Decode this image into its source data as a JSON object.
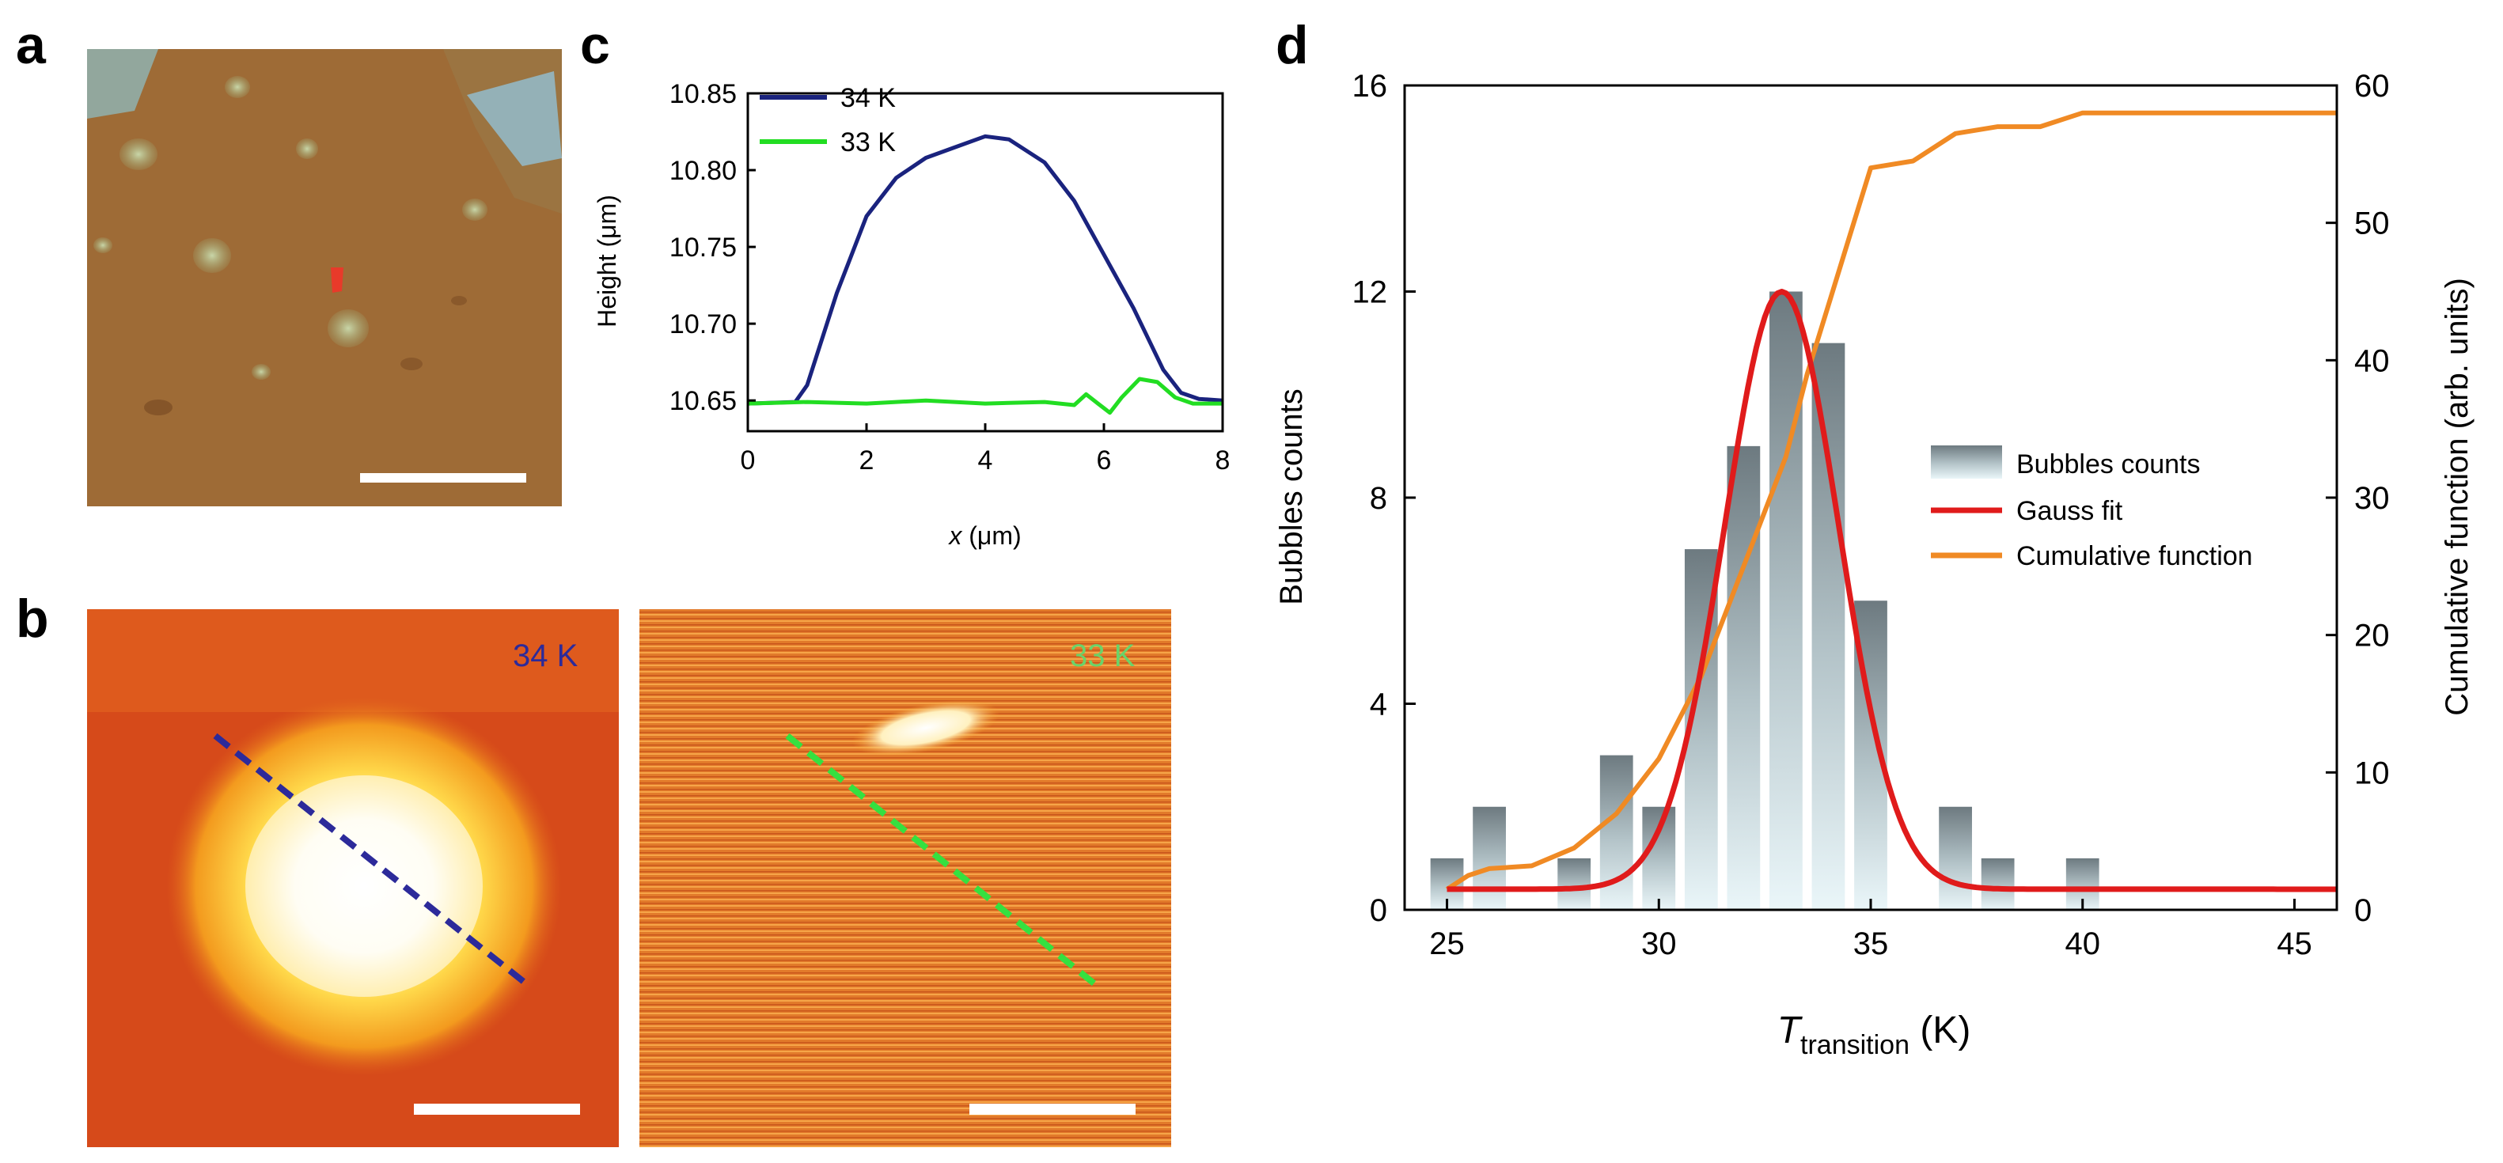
{
  "panel_labels": {
    "a": "a",
    "b": "b",
    "c": "c",
    "d": "d"
  },
  "panel_b": {
    "left_temp": "34 K",
    "right_temp": "33 K"
  },
  "chart_data": [
    {
      "id": "c",
      "type": "line",
      "title": "",
      "xlabel_italic": "x",
      "xlabel_rest": " (μm)",
      "ylabel": "Height (μm)",
      "xlim": [
        0,
        8
      ],
      "ylim": [
        10.63,
        10.85
      ],
      "xticks": [
        "0",
        "2",
        "4",
        "6",
        "8"
      ],
      "yticks": [
        "10.65",
        "10.70",
        "10.75",
        "10.80",
        "10.85"
      ],
      "legend_position": "top-left",
      "series": [
        {
          "name": "34 K",
          "color": "#1a237e",
          "x": [
            0,
            0.8,
            1.0,
            1.5,
            2.0,
            2.5,
            3.0,
            3.5,
            4.0,
            4.4,
            5.0,
            5.5,
            6.0,
            6.5,
            7.0,
            7.3,
            7.6,
            8.0
          ],
          "y": [
            10.648,
            10.649,
            10.66,
            10.72,
            10.77,
            10.795,
            10.808,
            10.815,
            10.822,
            10.82,
            10.805,
            10.78,
            10.745,
            10.71,
            10.67,
            10.655,
            10.651,
            10.65
          ]
        },
        {
          "name": "33 K",
          "color": "#22dd22",
          "x": [
            0,
            1,
            2,
            3,
            4,
            5,
            5.5,
            5.7,
            5.9,
            6.1,
            6.3,
            6.6,
            6.9,
            7.2,
            7.5,
            8.0
          ],
          "y": [
            10.648,
            10.649,
            10.648,
            10.65,
            10.648,
            10.649,
            10.647,
            10.654,
            10.648,
            10.642,
            10.652,
            10.664,
            10.662,
            10.652,
            10.648,
            10.648
          ]
        }
      ]
    },
    {
      "id": "d",
      "type": "bar",
      "title": "",
      "xlabel_main": "T",
      "xlabel_sub": "transition",
      "xlabel_unit": " (K)",
      "ylabel_left": "Bubbles counts",
      "ylabel_right": "Cumulative function (arb. units)",
      "xlim": [
        24,
        46
      ],
      "ylim_left": [
        0,
        16
      ],
      "ylim_right": [
        0,
        60
      ],
      "xticks": [
        "25",
        "30",
        "35",
        "40",
        "45"
      ],
      "yticks_left": [
        "0",
        "4",
        "8",
        "12",
        "16"
      ],
      "yticks_right": [
        "0",
        "10",
        "20",
        "30",
        "40",
        "50",
        "60"
      ],
      "legend_position": "center-right",
      "bars": {
        "name": "Bubbles counts",
        "x": [
          25,
          26,
          27,
          28,
          29,
          30,
          31,
          32,
          33,
          34,
          35,
          36,
          37,
          38,
          39,
          40
        ],
        "values": [
          1,
          2,
          0,
          1,
          3,
          2,
          7,
          9,
          12,
          11,
          6,
          0,
          2,
          1,
          0,
          1
        ]
      },
      "gauss_fit": {
        "name": "Gauss fit",
        "color": "#e01b1b",
        "amplitude": 11.6,
        "center": 32.9,
        "sigma": 1.35,
        "offset": 0.4
      },
      "cumulative": {
        "name": "Cumulative function",
        "color": "#f08a24",
        "x": [
          25,
          25.5,
          26,
          27,
          28,
          29,
          30,
          31,
          32,
          33,
          33.5,
          34,
          34.5,
          35,
          36,
          37,
          38,
          39,
          40,
          41,
          46
        ],
        "y": [
          1.5,
          2.5,
          3,
          3.2,
          4.5,
          7,
          11,
          17,
          25,
          33,
          39,
          44,
          49,
          54,
          54.5,
          56.5,
          57,
          57,
          58,
          58,
          58
        ]
      }
    }
  ]
}
